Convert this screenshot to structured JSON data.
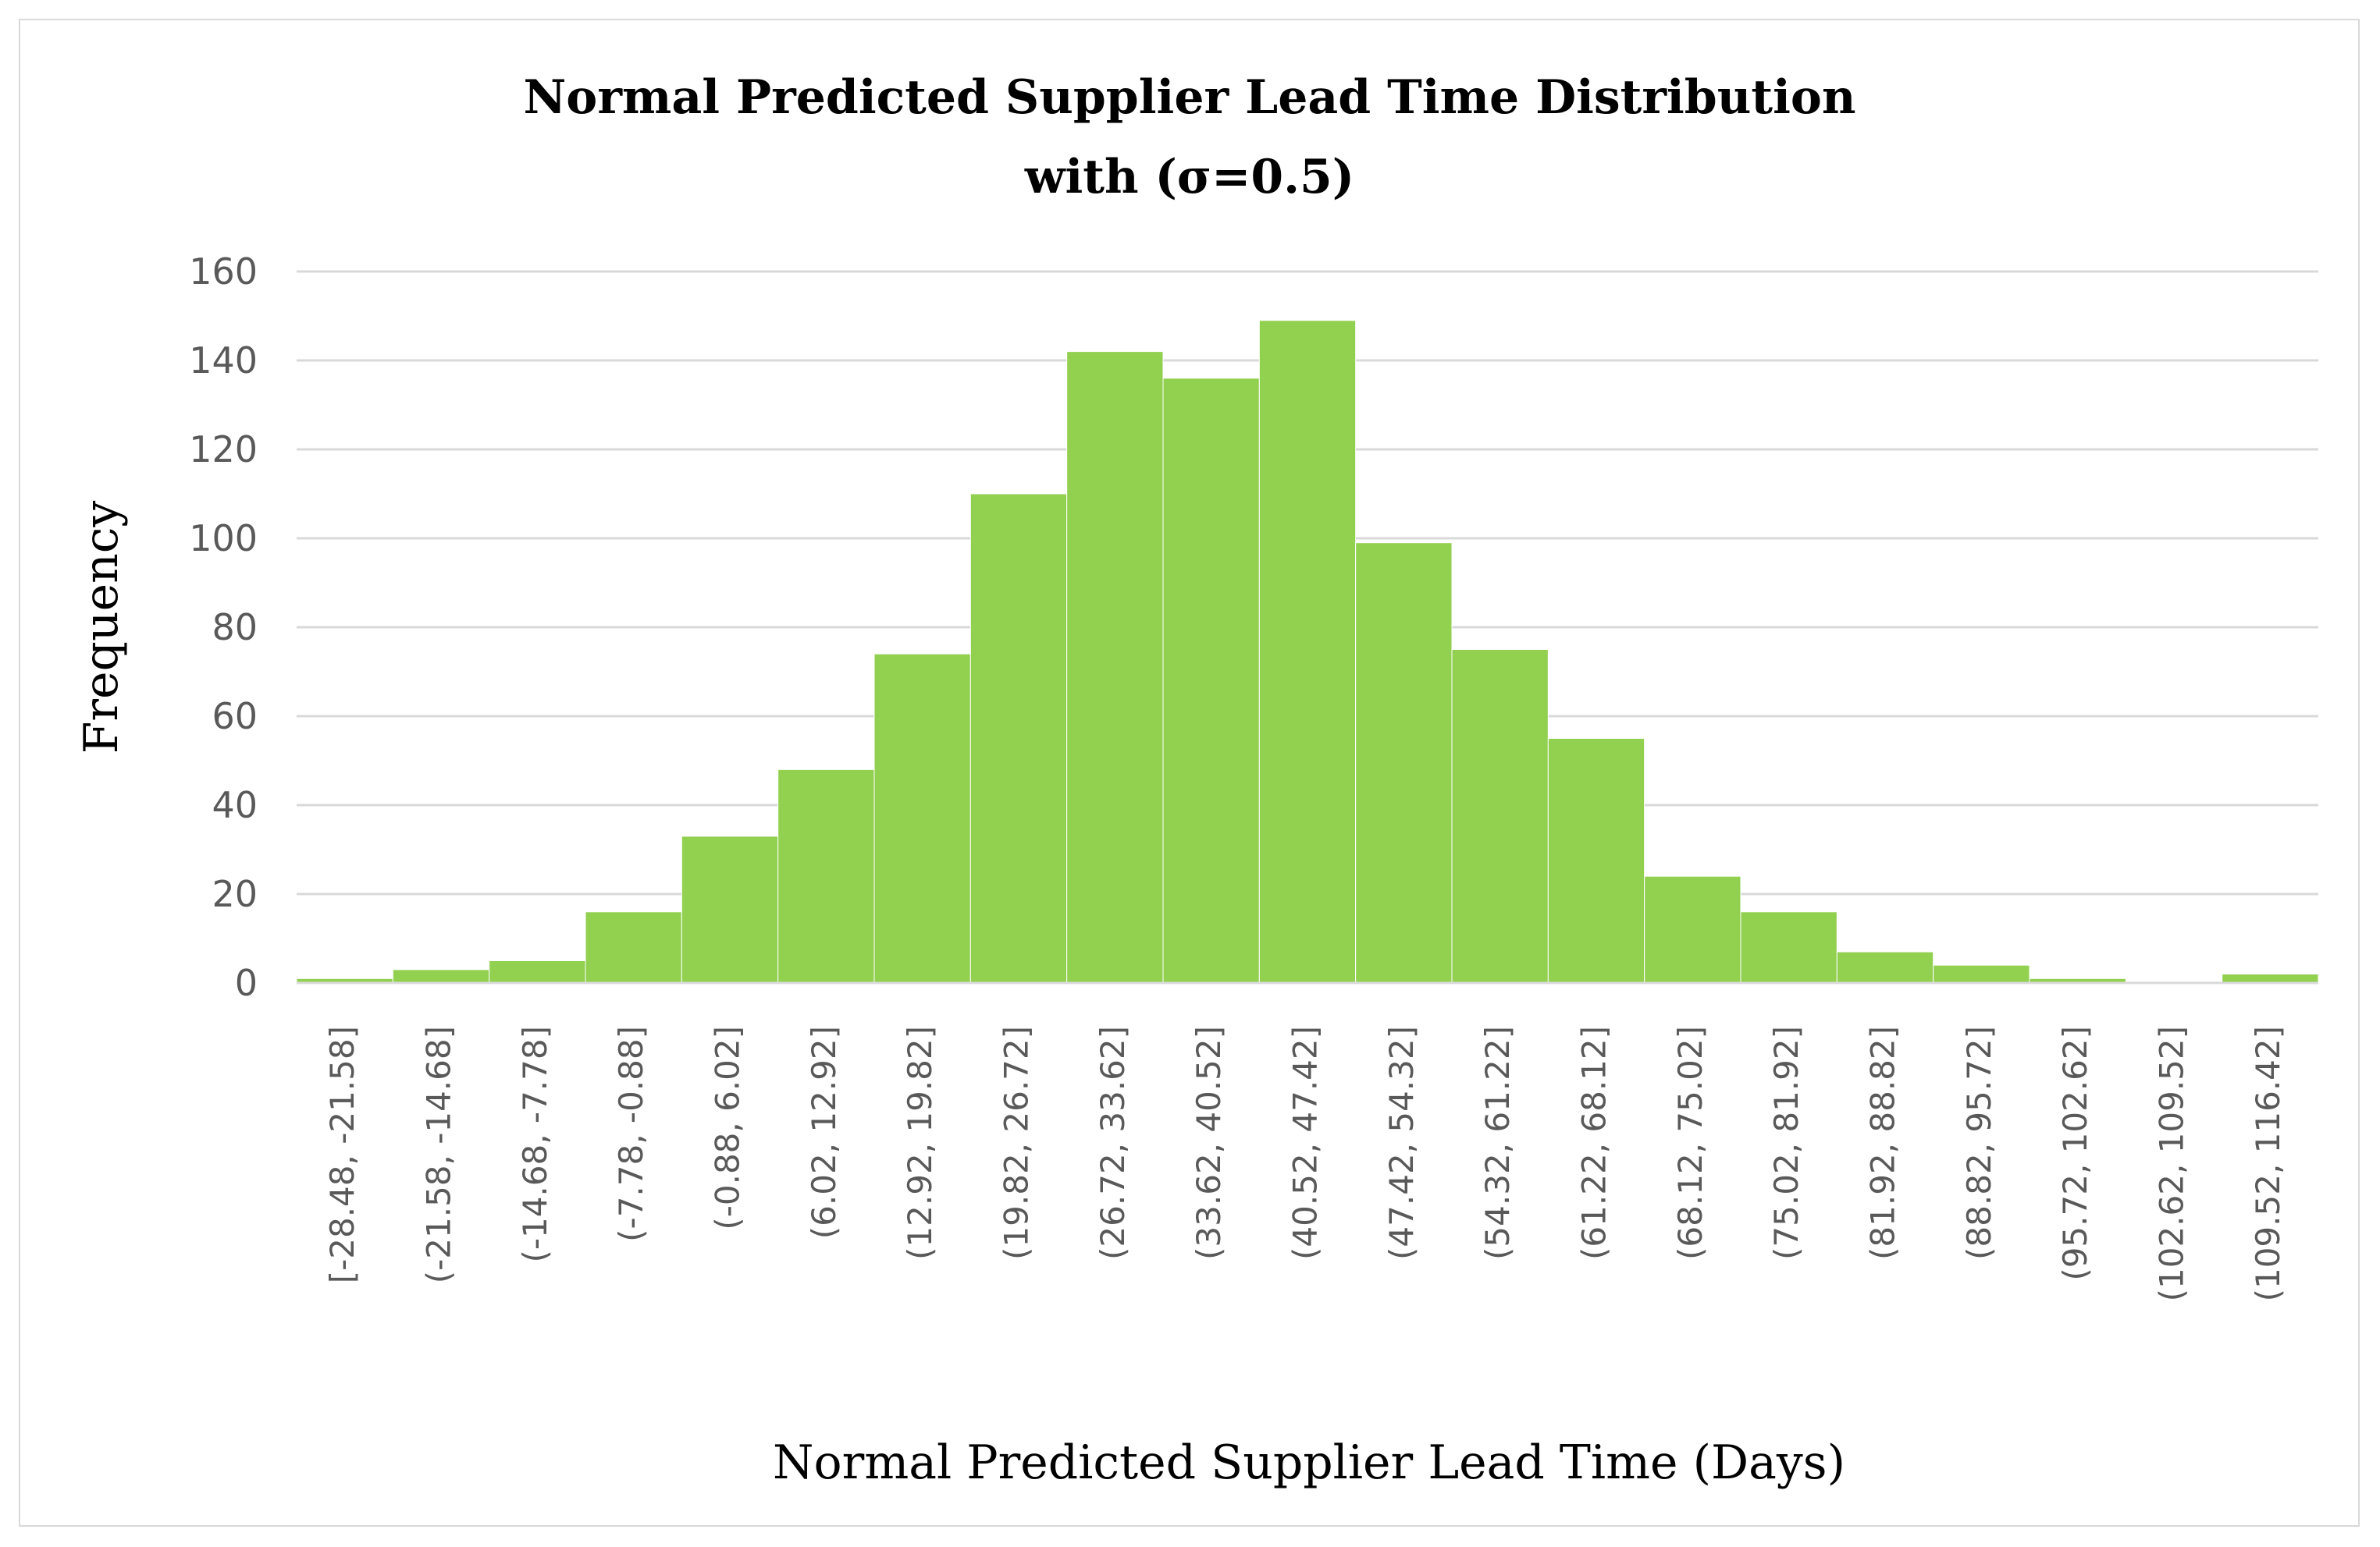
{
  "chart_data": {
    "type": "bar",
    "title": "Normal Predicted Supplier Lead Time Distribution",
    "subtitle": "with (σ=0.5)",
    "xlabel": "Normal Predicted Supplier Lead Time (Days)",
    "ylabel": "Frequency",
    "ylim": [
      0,
      160
    ],
    "yticks": [
      "0",
      "20",
      "40",
      "60",
      "80",
      "100",
      "120",
      "140",
      "160"
    ],
    "grid": true,
    "legend": "none",
    "bar_color": "#92d050",
    "categories": [
      "[-28.48, -21.58]",
      "(-21.58, -14.68]",
      "(-14.68, -7.78]",
      "(-7.78, -0.88]",
      "(-0.88, 6.02]",
      "(6.02, 12.92]",
      "(12.92, 19.82]",
      "(19.82, 26.72]",
      "(26.72, 33.62]",
      "(33.62, 40.52]",
      "(40.52, 47.42]",
      "(47.42, 54.32]",
      "(54.32, 61.22]",
      "(61.22, 68.12]",
      "(68.12, 75.02]",
      "(75.02, 81.92]",
      "(81.92, 88.82]",
      "(88.82, 95.72]",
      "(95.72, 102.62]",
      "(102.62, 109.52]",
      "(109.52, 116.42]"
    ],
    "values": [
      1,
      3,
      5,
      16,
      33,
      48,
      74,
      110,
      142,
      136,
      149,
      99,
      75,
      55,
      24,
      16,
      7,
      4,
      1,
      0,
      2
    ]
  }
}
